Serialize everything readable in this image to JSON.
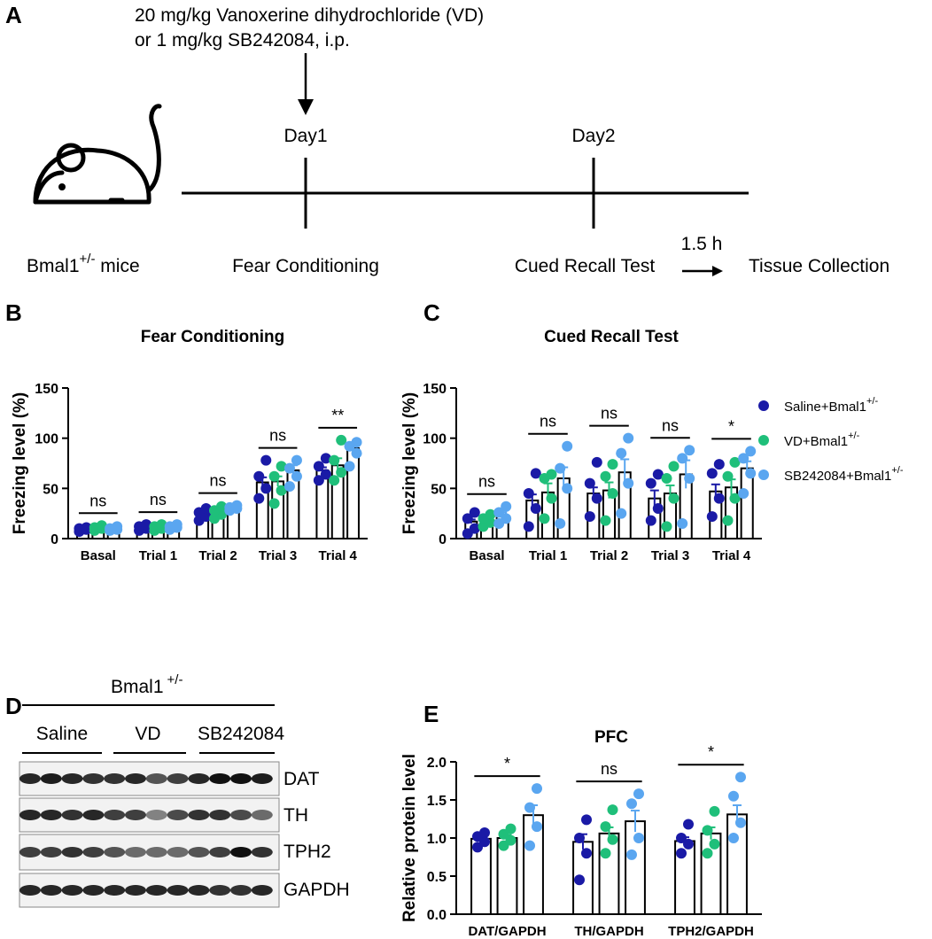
{
  "panel_a": {
    "label": "A",
    "treatment_line1": "20 mg/kg Vanoxerine dihydrochloride (VD)",
    "treatment_line2": "or 1 mg/kg SB242084, i.p.",
    "day1": "Day1",
    "day2": "Day2",
    "mice": "Bmal1",
    "mice_sup": "+/-",
    "mice_suffix": " mice",
    "step1": "Fear Conditioning",
    "step2": "Cued Recall Test",
    "interval": "1.5 h",
    "step3": "Tissue Collection"
  },
  "panel_d": {
    "label": "D",
    "group": "Bmal1",
    "group_sup": "+/-",
    "groups": [
      "Saline",
      "VD",
      "SB242084"
    ],
    "bands": [
      "DAT",
      "TH",
      "TPH2",
      "GAPDH"
    ]
  },
  "chart_data": [
    {
      "type": "bar",
      "panel_label": "B",
      "title": "Fear Conditioning",
      "ylabel": "Freezing level (%)",
      "categories": [
        "Basal",
        "Trial 1",
        "Trial 2",
        "Trial 3",
        "Trial 4"
      ],
      "ylim": [
        0,
        150
      ],
      "yticks": [
        0,
        50,
        100,
        150
      ],
      "annotations": [
        "ns",
        "ns",
        "ns",
        "ns",
        "**"
      ],
      "series": [
        {
          "name": "Saline+Bmal1",
          "name_sup": "+/-",
          "color": "#1a1aa6",
          "values": [
            9,
            11,
            23,
            56,
            68
          ],
          "errors": [
            1,
            1,
            2,
            5,
            3
          ],
          "points": [
            [
              7,
              9,
              10,
              11
            ],
            [
              8,
              10,
              12,
              14
            ],
            [
              18,
              22,
              26,
              30
            ],
            [
              40,
              50,
              62,
              78
            ],
            [
              58,
              64,
              72,
              80
            ]
          ]
        },
        {
          "name": "VD+Bmal1",
          "name_sup": "+/-",
          "color": "#1fbf7a",
          "values": [
            10,
            11,
            25,
            57,
            73
          ],
          "errors": [
            1,
            1,
            2,
            5,
            7
          ],
          "points": [
            [
              8,
              10,
              11,
              13
            ],
            [
              8,
              10,
              12,
              14
            ],
            [
              20,
              24,
              28,
              32
            ],
            [
              35,
              48,
              62,
              72
            ],
            [
              58,
              66,
              78,
              98
            ]
          ]
        },
        {
          "name": "SB242084+Bmal1",
          "name_sup": "+/-",
          "color": "#5aa6f0",
          "values": [
            10,
            11,
            30,
            68,
            90
          ],
          "errors": [
            1,
            1,
            1,
            5,
            6
          ],
          "points": [
            [
              8,
              9,
              10,
              12
            ],
            [
              9,
              11,
              12,
              14
            ],
            [
              28,
              30,
              31,
              33
            ],
            [
              52,
              62,
              70,
              78
            ],
            [
              72,
              85,
              92,
              96
            ]
          ]
        }
      ]
    },
    {
      "type": "bar",
      "panel_label": "C",
      "title": "Cued Recall Test",
      "ylabel": "Freezing level (%)",
      "legend": true,
      "categories": [
        "Basal",
        "Trial 1",
        "Trial 2",
        "Trial 3",
        "Trial 4"
      ],
      "ylim": [
        0,
        150
      ],
      "yticks": [
        0,
        50,
        100,
        150
      ],
      "annotations": [
        "ns",
        "ns",
        "ns",
        "ns",
        "*"
      ],
      "series": [
        {
          "name": "Saline+Bmal1",
          "name_sup": "+/-",
          "color": "#1a1aa6",
          "values": [
            17,
            38,
            45,
            40,
            47
          ],
          "errors": [
            2,
            6,
            6,
            8,
            7
          ],
          "points": [
            [
              5,
              10,
              20,
              26
            ],
            [
              12,
              30,
              45,
              65
            ],
            [
              22,
              40,
              55,
              76
            ],
            [
              18,
              30,
              55,
              64
            ],
            [
              22,
              40,
              65,
              74
            ]
          ]
        },
        {
          "name": "VD+Bmal1",
          "name_sup": "+/-",
          "color": "#1fbf7a",
          "values": [
            18,
            46,
            48,
            45,
            51
          ],
          "errors": [
            2,
            9,
            8,
            8,
            8
          ],
          "points": [
            [
              12,
              16,
              20,
              24
            ],
            [
              20,
              40,
              60,
              64
            ],
            [
              18,
              45,
              62,
              74
            ],
            [
              12,
              40,
              60,
              72
            ],
            [
              18,
              40,
              62,
              76
            ]
          ]
        },
        {
          "name": "SB242084+Bmal1",
          "name_sup": "+/-",
          "color": "#5aa6f0",
          "values": [
            23,
            60,
            66,
            64,
            70
          ],
          "errors": [
            3,
            11,
            13,
            14,
            7
          ],
          "points": [
            [
              15,
              20,
              26,
              32
            ],
            [
              15,
              50,
              70,
              92
            ],
            [
              25,
              55,
              85,
              100
            ],
            [
              15,
              60,
              80,
              88
            ],
            [
              45,
              65,
              80,
              87
            ]
          ]
        }
      ]
    },
    {
      "type": "bar",
      "panel_label": "E",
      "title": "PFC",
      "ylabel": "Relative protein level",
      "categories": [
        "DAT/GAPDH",
        "TH/GAPDH",
        "TPH2/GAPDH"
      ],
      "ylim": [
        0,
        2
      ],
      "yticks": [
        {
          "value": 0,
          "label": "0.0"
        },
        {
          "value": 0.5,
          "label": "0.5"
        },
        {
          "value": 1,
          "label": "1.0"
        },
        {
          "value": 1.5,
          "label": "1.5"
        },
        {
          "value": 2,
          "label": "2.0"
        }
      ],
      "annotations": [
        "*",
        "ns",
        "*"
      ],
      "series": [
        {
          "name": "Saline+Bmal1",
          "color": "#1a1aa6",
          "values": [
            0.99,
            0.95,
            0.96
          ],
          "errors": [
            0.04,
            0.1,
            0.05
          ],
          "points": [
            [
              0.88,
              0.95,
              1.02,
              1.07
            ],
            [
              0.45,
              0.8,
              1.0,
              1.24
            ],
            [
              0.8,
              0.92,
              1.0,
              1.18
            ]
          ]
        },
        {
          "name": "VD+Bmal1",
          "color": "#1fbf7a",
          "values": [
            1.0,
            1.06,
            1.06
          ],
          "errors": [
            0.04,
            0.08,
            0.08
          ],
          "points": [
            [
              0.9,
              0.97,
              1.05,
              1.12
            ],
            [
              0.8,
              0.98,
              1.15,
              1.37
            ],
            [
              0.8,
              0.92,
              1.1,
              1.35
            ]
          ]
        },
        {
          "name": "SB242084+Bmal1",
          "color": "#5aa6f0",
          "values": [
            1.3,
            1.22,
            1.31
          ],
          "errors": [
            0.13,
            0.14,
            0.12
          ],
          "points": [
            [
              0.9,
              1.15,
              1.4,
              1.65
            ],
            [
              0.78,
              1.0,
              1.45,
              1.58
            ],
            [
              1.0,
              1.2,
              1.55,
              1.8
            ]
          ]
        }
      ]
    }
  ]
}
